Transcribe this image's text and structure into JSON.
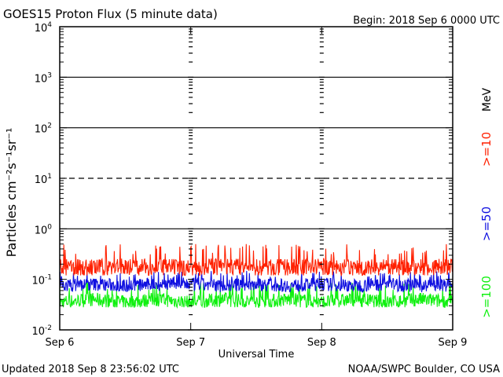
{
  "header": {
    "title": "GOES15 Proton Flux (5 minute data)",
    "begin": "Begin: 2018 Sep 6 0000 UTC"
  },
  "footer": {
    "updated": "Updated 2018 Sep  8 23:56:02 UTC",
    "credit": "NOAA/SWPC Boulder, CO USA"
  },
  "chart_data": {
    "type": "line",
    "title": "GOES15 Proton Flux (5 minute data)",
    "xlabel": "Universal Time",
    "ylabel": "Particles cm⁻²s⁻¹sr⁻¹",
    "yscale": "log",
    "ylim": [
      0.01,
      10000
    ],
    "xlim": [
      0,
      3
    ],
    "x_ticks": [
      "Sep 6",
      "Sep 7",
      "Sep 8",
      "Sep 9"
    ],
    "y_ticks": [
      {
        "base": "10",
        "exp": "-2"
      },
      {
        "base": "10",
        "exp": "-1"
      },
      {
        "base": "10",
        "exp": "0"
      },
      {
        "base": "10",
        "exp": "1"
      },
      {
        "base": "10",
        "exp": "2"
      },
      {
        "base": "10",
        "exp": "3"
      },
      {
        "base": "10",
        "exp": "4"
      }
    ],
    "threshold_lines": [
      {
        "value": 10,
        "style": "dashed"
      },
      {
        "value": 1,
        "style": "solid"
      },
      {
        "value": 100,
        "style": "solid"
      },
      {
        "value": 1000,
        "style": "solid"
      }
    ],
    "unit_label": "MeV",
    "series": [
      {
        "name": ">=10",
        "color": "#ff2000",
        "x": [
          0.0,
          0.25,
          0.5,
          0.75,
          1.0,
          1.25,
          1.5,
          1.75,
          2.0,
          2.25,
          2.5,
          2.75,
          3.0
        ],
        "values": [
          0.17,
          0.17,
          0.18,
          0.17,
          0.17,
          0.18,
          0.17,
          0.17,
          0.18,
          0.17,
          0.17,
          0.17,
          0.18
        ],
        "range": [
          0.12,
          0.5
        ]
      },
      {
        "name": ">=50",
        "color": "#1010e0",
        "x": [
          0.0,
          0.25,
          0.5,
          0.75,
          1.0,
          1.25,
          1.5,
          1.75,
          2.0,
          2.25,
          2.5,
          2.75,
          3.0
        ],
        "values": [
          0.075,
          0.08,
          0.075,
          0.08,
          0.08,
          0.075,
          0.08,
          0.075,
          0.08,
          0.075,
          0.08,
          0.075,
          0.075
        ],
        "range": [
          0.05,
          0.15
        ]
      },
      {
        "name": ">=100",
        "color": "#10f010",
        "x": [
          0.0,
          0.25,
          0.5,
          0.75,
          1.0,
          1.25,
          1.5,
          1.75,
          2.0,
          2.25,
          2.5,
          2.75,
          3.0
        ],
        "values": [
          0.035,
          0.04,
          0.035,
          0.04,
          0.035,
          0.04,
          0.035,
          0.04,
          0.035,
          0.04,
          0.035,
          0.04,
          0.035
        ],
        "range": [
          0.028,
          0.09
        ]
      }
    ]
  }
}
